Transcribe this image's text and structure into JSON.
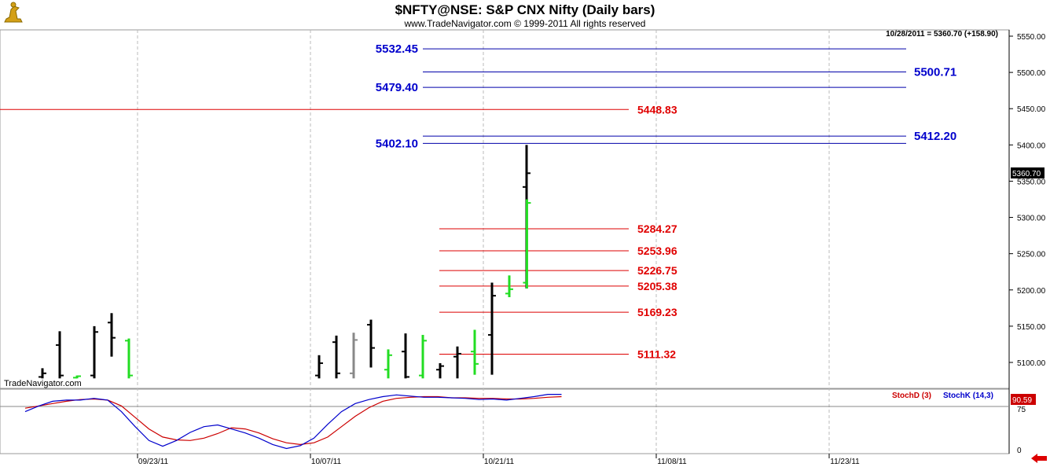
{
  "header": {
    "title": "$NFTY@NSE:  S&P CNX Nifty  (Daily bars)",
    "subtitle": "www.TradeNavigator.com © 1999-2011 All rights reserved",
    "last_info": "10/28/2011 = 5360.70 (+158.90)"
  },
  "brand": "TradeNavigator.com",
  "colors": {
    "up_bar": "#22dd22",
    "down_bar": "#000000",
    "neutral_bar": "#888888",
    "blue_level": "#0000aa",
    "red_level": "#dd0000",
    "stoch_d": "#cc0000",
    "stoch_k": "#0000cc",
    "last_tag_bg": "#000000",
    "stoch_tag_bg": "#cc0000",
    "arrow": "#dd0000"
  },
  "icons": {
    "logo": "figure-logo-icon",
    "scroll": "left-arrow-icon"
  },
  "chart_data": {
    "type": "bar",
    "title": "$NFTY@NSE:  S&P CNX Nifty  (Daily bars)",
    "price_axis": {
      "ticks": [
        "5550.00",
        "5500.00",
        "5450.00",
        "5400.00",
        "5350.00",
        "5300.00",
        "5250.00",
        "5200.00",
        "5150.00",
        "5100.00"
      ],
      "ylim": [
        5078,
        5557
      ]
    },
    "last_price_tag": "5360.70",
    "date_ticks": [
      "09/23/11",
      "10/07/11",
      "10/21/11",
      "11/08/11",
      "11/23/11"
    ],
    "bars": [
      {
        "idx": 0,
        "high": 5092,
        "low": 5078,
        "open": 5080,
        "close": 5085,
        "color": "down"
      },
      {
        "idx": 1,
        "high": 5143,
        "low": 5078,
        "open": 5124,
        "close": 5082,
        "color": "down"
      },
      {
        "idx": 2,
        "high": 5082,
        "low": 5078,
        "open": 5079,
        "close": 5081,
        "color": "up"
      },
      {
        "idx": 3,
        "high": 5150,
        "low": 5078,
        "open": 5082,
        "close": 5142,
        "color": "down"
      },
      {
        "idx": 4,
        "high": 5168,
        "low": 5108,
        "open": 5155,
        "close": 5134,
        "color": "down"
      },
      {
        "idx": 5,
        "high": 5133,
        "low": 5078,
        "open": 5130,
        "close": 5082,
        "color": "up"
      },
      {
        "idx": 16,
        "high": 5110,
        "low": 5078,
        "open": 5082,
        "close": 5099,
        "color": "down"
      },
      {
        "idx": 17,
        "high": 5137,
        "low": 5078,
        "open": 5128,
        "close": 5085,
        "color": "down"
      },
      {
        "idx": 18,
        "high": 5141,
        "low": 5078,
        "open": 5085,
        "close": 5131,
        "color": "neutral"
      },
      {
        "idx": 19,
        "high": 5159,
        "low": 5093,
        "open": 5152,
        "close": 5120,
        "color": "down"
      },
      {
        "idx": 20,
        "high": 5118,
        "low": 5078,
        "open": 5090,
        "close": 5110,
        "color": "up"
      },
      {
        "idx": 21,
        "high": 5140,
        "low": 5078,
        "open": 5115,
        "close": 5080,
        "color": "down"
      },
      {
        "idx": 22,
        "high": 5138,
        "low": 5078,
        "open": 5082,
        "close": 5130,
        "color": "up"
      },
      {
        "idx": 23,
        "high": 5099,
        "low": 5078,
        "open": 5090,
        "close": 5095,
        "color": "down"
      },
      {
        "idx": 24,
        "high": 5122,
        "low": 5078,
        "open": 5108,
        "close": 5112,
        "color": "down"
      },
      {
        "idx": 25,
        "high": 5145,
        "low": 5083,
        "open": 5115,
        "close": 5098,
        "color": "up"
      },
      {
        "idx": 26,
        "high": 5210,
        "low": 5083,
        "open": 5138,
        "close": 5192,
        "color": "down"
      },
      {
        "idx": 27,
        "high": 5220,
        "low": 5190,
        "open": 5195,
        "close": 5201,
        "color": "up"
      },
      {
        "idx": 28,
        "high": 5400,
        "low": 5202,
        "open": 5342,
        "close": 5361,
        "color": "down"
      },
      {
        "idx": 28.02,
        "high": 5325,
        "low": 5202,
        "open": 5210,
        "close": 5320,
        "color": "up"
      }
    ],
    "levels_blue": [
      {
        "value": 5532.45,
        "label": "5532.45",
        "side": "left"
      },
      {
        "value": 5500.71,
        "label": "5500.71",
        "side": "right"
      },
      {
        "value": 5479.4,
        "label": "5479.40",
        "side": "left"
      },
      {
        "value": 5412.2,
        "label": "5412.20",
        "side": "right"
      },
      {
        "value": 5402.1,
        "label": "5402.10",
        "side": "left"
      }
    ],
    "levels_red": [
      {
        "value": 5448.83,
        "label": "5448.83"
      },
      {
        "value": 5284.27,
        "label": "5284.27"
      },
      {
        "value": 5253.96,
        "label": "5253.96"
      },
      {
        "value": 5226.75,
        "label": "5226.75"
      },
      {
        "value": 5205.38,
        "label": "5205.38"
      },
      {
        "value": 5169.23,
        "label": "5169.23"
      },
      {
        "value": 5111.32,
        "label": "5111.32"
      }
    ],
    "stochastic": {
      "legend_d": "StochD (3)",
      "legend_k": "StochK (14,3)",
      "tag": "90.59",
      "ticks": [
        "75",
        "0"
      ],
      "stochD": [
        72,
        76,
        80,
        84,
        87,
        88,
        86,
        76,
        56,
        36,
        22,
        17,
        16,
        20,
        28,
        38,
        36,
        29,
        19,
        12,
        9,
        12,
        22,
        40,
        58,
        73,
        84,
        89,
        91,
        92,
        92,
        90,
        90,
        89,
        89,
        88,
        88,
        89,
        91,
        92
      ],
      "stochK": [
        66,
        76,
        84,
        86,
        86,
        89,
        86,
        66,
        40,
        16,
        6,
        16,
        30,
        40,
        43,
        36,
        29,
        20,
        9,
        2,
        7,
        20,
        44,
        66,
        80,
        87,
        92,
        95,
        93,
        91,
        91,
        90,
        89,
        87,
        88,
        86,
        89,
        92,
        96,
        96
      ]
    }
  }
}
